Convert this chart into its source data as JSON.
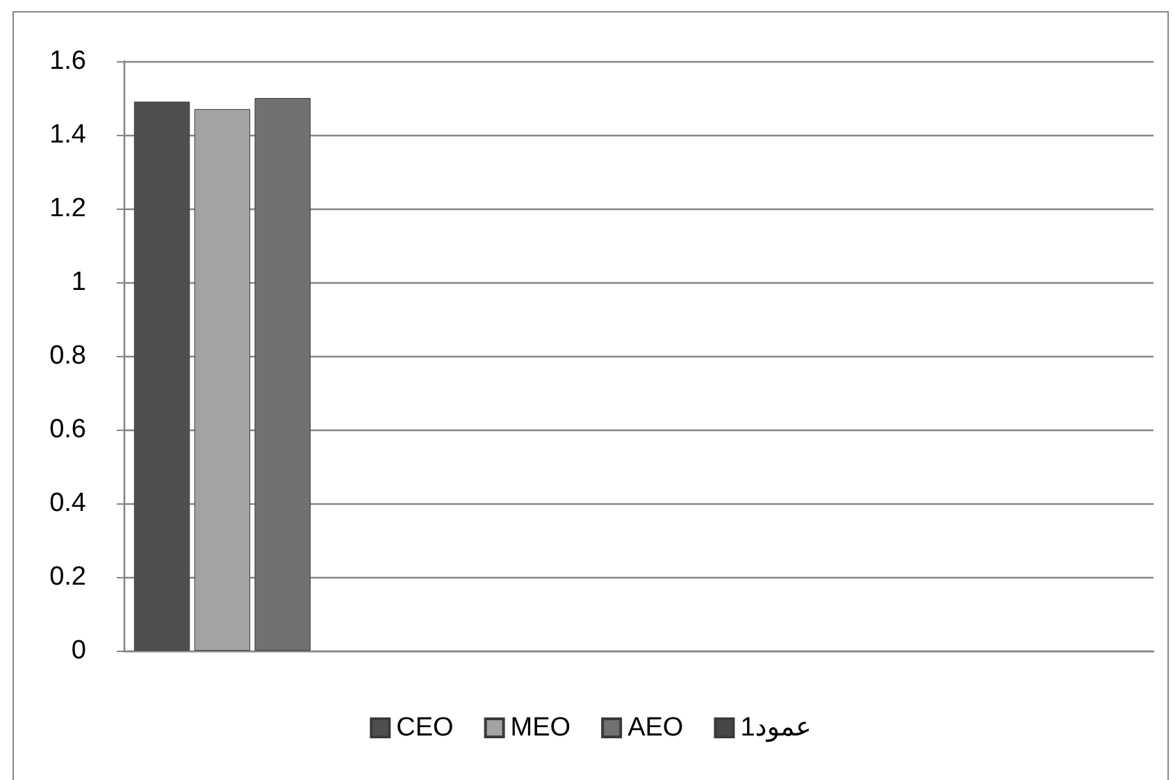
{
  "chart_data": {
    "type": "bar",
    "categories": [
      null,
      null,
      null,
      null
    ],
    "series": [
      {
        "name": "CEO",
        "color": "#4f4f4f",
        "values": [
          1.49,
          null,
          null,
          null
        ]
      },
      {
        "name": "MEO",
        "color": "#a3a3a3",
        "values": [
          1.47,
          null,
          null,
          null
        ]
      },
      {
        "name": "AEO",
        "color": "#717171",
        "values": [
          1.5,
          null,
          null,
          null
        ]
      },
      {
        "name": "عمود1",
        "color": "#474747",
        "values": [
          null,
          null,
          null,
          null
        ]
      }
    ],
    "ylim": [
      0,
      1.6
    ],
    "yticks": [
      0,
      0.2,
      0.4,
      0.6,
      0.8,
      1,
      1.2,
      1.4,
      1.6
    ],
    "grid": "y",
    "legend": "bottom",
    "tick_labels": "y"
  }
}
